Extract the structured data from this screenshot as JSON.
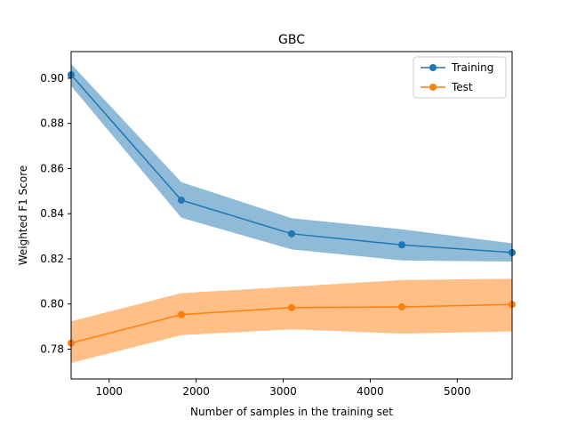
{
  "chart_data": {
    "type": "line",
    "title": "GBC",
    "xlabel": "Number of samples in the training set",
    "ylabel": "Weighted F1 Score",
    "xlim": [
      563,
      5630
    ],
    "ylim": [
      0.7668,
      0.9118
    ],
    "x_ticks": [
      1000,
      2000,
      3000,
      4000,
      5000
    ],
    "y_ticks": [
      0.78,
      0.8,
      0.82,
      0.84,
      0.86,
      0.88,
      0.9
    ],
    "x_tick_labels": [
      "1000",
      "2000",
      "3000",
      "4000",
      "5000"
    ],
    "y_tick_labels": [
      "0.78",
      "0.80",
      "0.82",
      "0.84",
      "0.86",
      "0.88",
      "0.90"
    ],
    "grid": false,
    "legend_position": "upper right",
    "x": [
      563,
      1829,
      3096,
      4363,
      5630
    ],
    "series": [
      {
        "name": "Training",
        "color": "#1f77b4",
        "band_color": "#1f77b4",
        "values": [
          0.9015,
          0.846,
          0.8311,
          0.8262,
          0.8228
        ],
        "band_upper": [
          0.9063,
          0.854,
          0.838,
          0.8331,
          0.8269
        ],
        "band_lower": [
          0.8966,
          0.8382,
          0.8242,
          0.8193,
          0.8188
        ]
      },
      {
        "name": "Test",
        "color": "#ff7f0e",
        "band_color": "#ff7f0e",
        "values": [
          0.7827,
          0.7953,
          0.7984,
          0.7987,
          0.7998
        ],
        "band_upper": [
          0.7923,
          0.8048,
          0.8077,
          0.8106,
          0.8112
        ],
        "band_lower": [
          0.7739,
          0.7862,
          0.7888,
          0.7869,
          0.7879
        ]
      }
    ]
  }
}
